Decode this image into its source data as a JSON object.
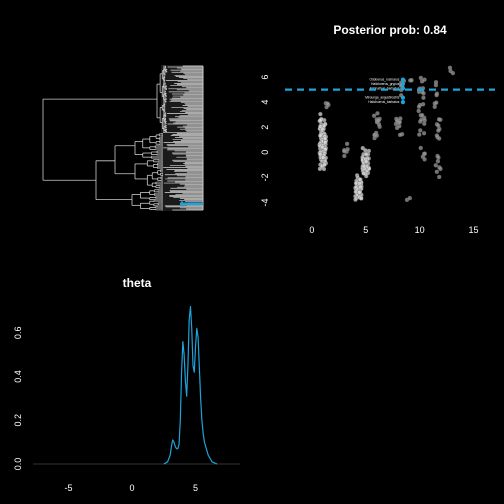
{
  "colors": {
    "background": "#000000",
    "foreground": "#ffffff",
    "tree_lines": "#cccccc",
    "tip_bars": "#d9d9d9",
    "highlight": "#1fa3d9",
    "points": "#9a9a9a",
    "points_dense": "#d8d8d8"
  },
  "chart_data": [
    {
      "panel": "phylogeny",
      "type": "tree",
      "title": "",
      "tip_count": 140,
      "highlighted_branch": "lower clade",
      "tip_labels_legible": false
    },
    {
      "panel": "posterior-scatter",
      "type": "scatter",
      "title": "Posterior prob: 0.84",
      "xlabel": "",
      "ylabel": "",
      "xlim": [
        -2.5,
        17
      ],
      "ylim": [
        -5,
        7.2
      ],
      "x_ticks": [
        "0",
        "5",
        "10",
        "15"
      ],
      "y_ticks": [
        "-4",
        "-2",
        "0",
        "2",
        "4",
        "6"
      ],
      "threshold_line": 5,
      "clusters": [
        {
          "x": 1.0,
          "y_min": -2.3,
          "y_max": 3.5,
          "count": 120,
          "dense": true
        },
        {
          "x": 1.3,
          "y_min": 3.4,
          "y_max": 4.0,
          "count": 4,
          "dense": false
        },
        {
          "x": 3.1,
          "y_min": -0.6,
          "y_max": 1.1,
          "count": 6,
          "dense": false
        },
        {
          "x": 4.3,
          "y_min": -4.4,
          "y_max": -1.5,
          "count": 60,
          "dense": true
        },
        {
          "x": 5.0,
          "y_min": -2.4,
          "y_max": 0.4,
          "count": 70,
          "dense": true
        },
        {
          "x": 6.0,
          "y_min": 1.1,
          "y_max": 3.2,
          "count": 14,
          "dense": false
        },
        {
          "x": 8.1,
          "y_min": 1.3,
          "y_max": 2.7,
          "count": 12,
          "dense": false
        },
        {
          "x": 8.4,
          "y_min": 4.4,
          "y_max": 5.7,
          "count": 8,
          "dense": false
        },
        {
          "x": 9.0,
          "y_min": -3.9,
          "y_max": -3.6,
          "count": 2,
          "dense": false
        },
        {
          "x": 9.2,
          "y_min": 5.6,
          "y_max": 5.9,
          "count": 2,
          "dense": false
        },
        {
          "x": 10.2,
          "y_min": -0.7,
          "y_max": 6.5,
          "count": 28,
          "dense": false
        },
        {
          "x": 11.7,
          "y_min": -2.0,
          "y_max": 5.6,
          "count": 24,
          "dense": false
        },
        {
          "x": 12.8,
          "y_min": 6.3,
          "y_max": 6.9,
          "count": 3,
          "dense": false
        }
      ],
      "highlighted_labels": [
        {
          "text": "Odobenus_rosmarus",
          "x": 8.3,
          "y": 5.8
        },
        {
          "text": "Halichoerus_grypus",
          "x": 8.3,
          "y": 5.45
        },
        {
          "text": "Erignathus_barbatus",
          "x": 8.3,
          "y": 5.1
        },
        {
          "text": "Mirounga_angustirostris",
          "x": 8.3,
          "y": 4.35
        },
        {
          "text": "Halichoerus_barbatus",
          "x": 8.3,
          "y": 4.0
        }
      ]
    },
    {
      "panel": "theta-density",
      "type": "line",
      "title": "theta",
      "xlabel": "",
      "ylabel": "",
      "xlim": [
        -7.8,
        8.5
      ],
      "ylim": [
        0,
        0.75
      ],
      "x_ticks": [
        "-5",
        "0",
        "5"
      ],
      "y_ticks": [
        "0.0",
        "0.2",
        "0.4",
        "0.6"
      ],
      "series": [
        {
          "x": [
            2.5,
            2.8,
            3.0,
            3.1,
            3.2,
            3.3,
            3.4,
            3.5,
            3.6,
            3.7,
            3.8,
            3.9,
            4.0,
            4.1,
            4.2,
            4.3,
            4.4,
            4.5,
            4.6,
            4.7,
            4.8,
            4.9,
            5.0,
            5.1,
            5.2,
            5.3,
            5.4,
            5.5,
            5.6,
            5.7,
            5.8,
            5.9,
            6.0,
            6.1,
            6.2,
            6.3,
            6.5,
            6.7
          ],
          "y": [
            0.0,
            0.01,
            0.04,
            0.08,
            0.11,
            0.1,
            0.08,
            0.07,
            0.07,
            0.09,
            0.2,
            0.42,
            0.56,
            0.5,
            0.38,
            0.31,
            0.45,
            0.66,
            0.72,
            0.62,
            0.45,
            0.42,
            0.54,
            0.62,
            0.58,
            0.44,
            0.3,
            0.2,
            0.14,
            0.1,
            0.08,
            0.06,
            0.04,
            0.03,
            0.02,
            0.01,
            0.005,
            0.0
          ]
        }
      ]
    }
  ]
}
